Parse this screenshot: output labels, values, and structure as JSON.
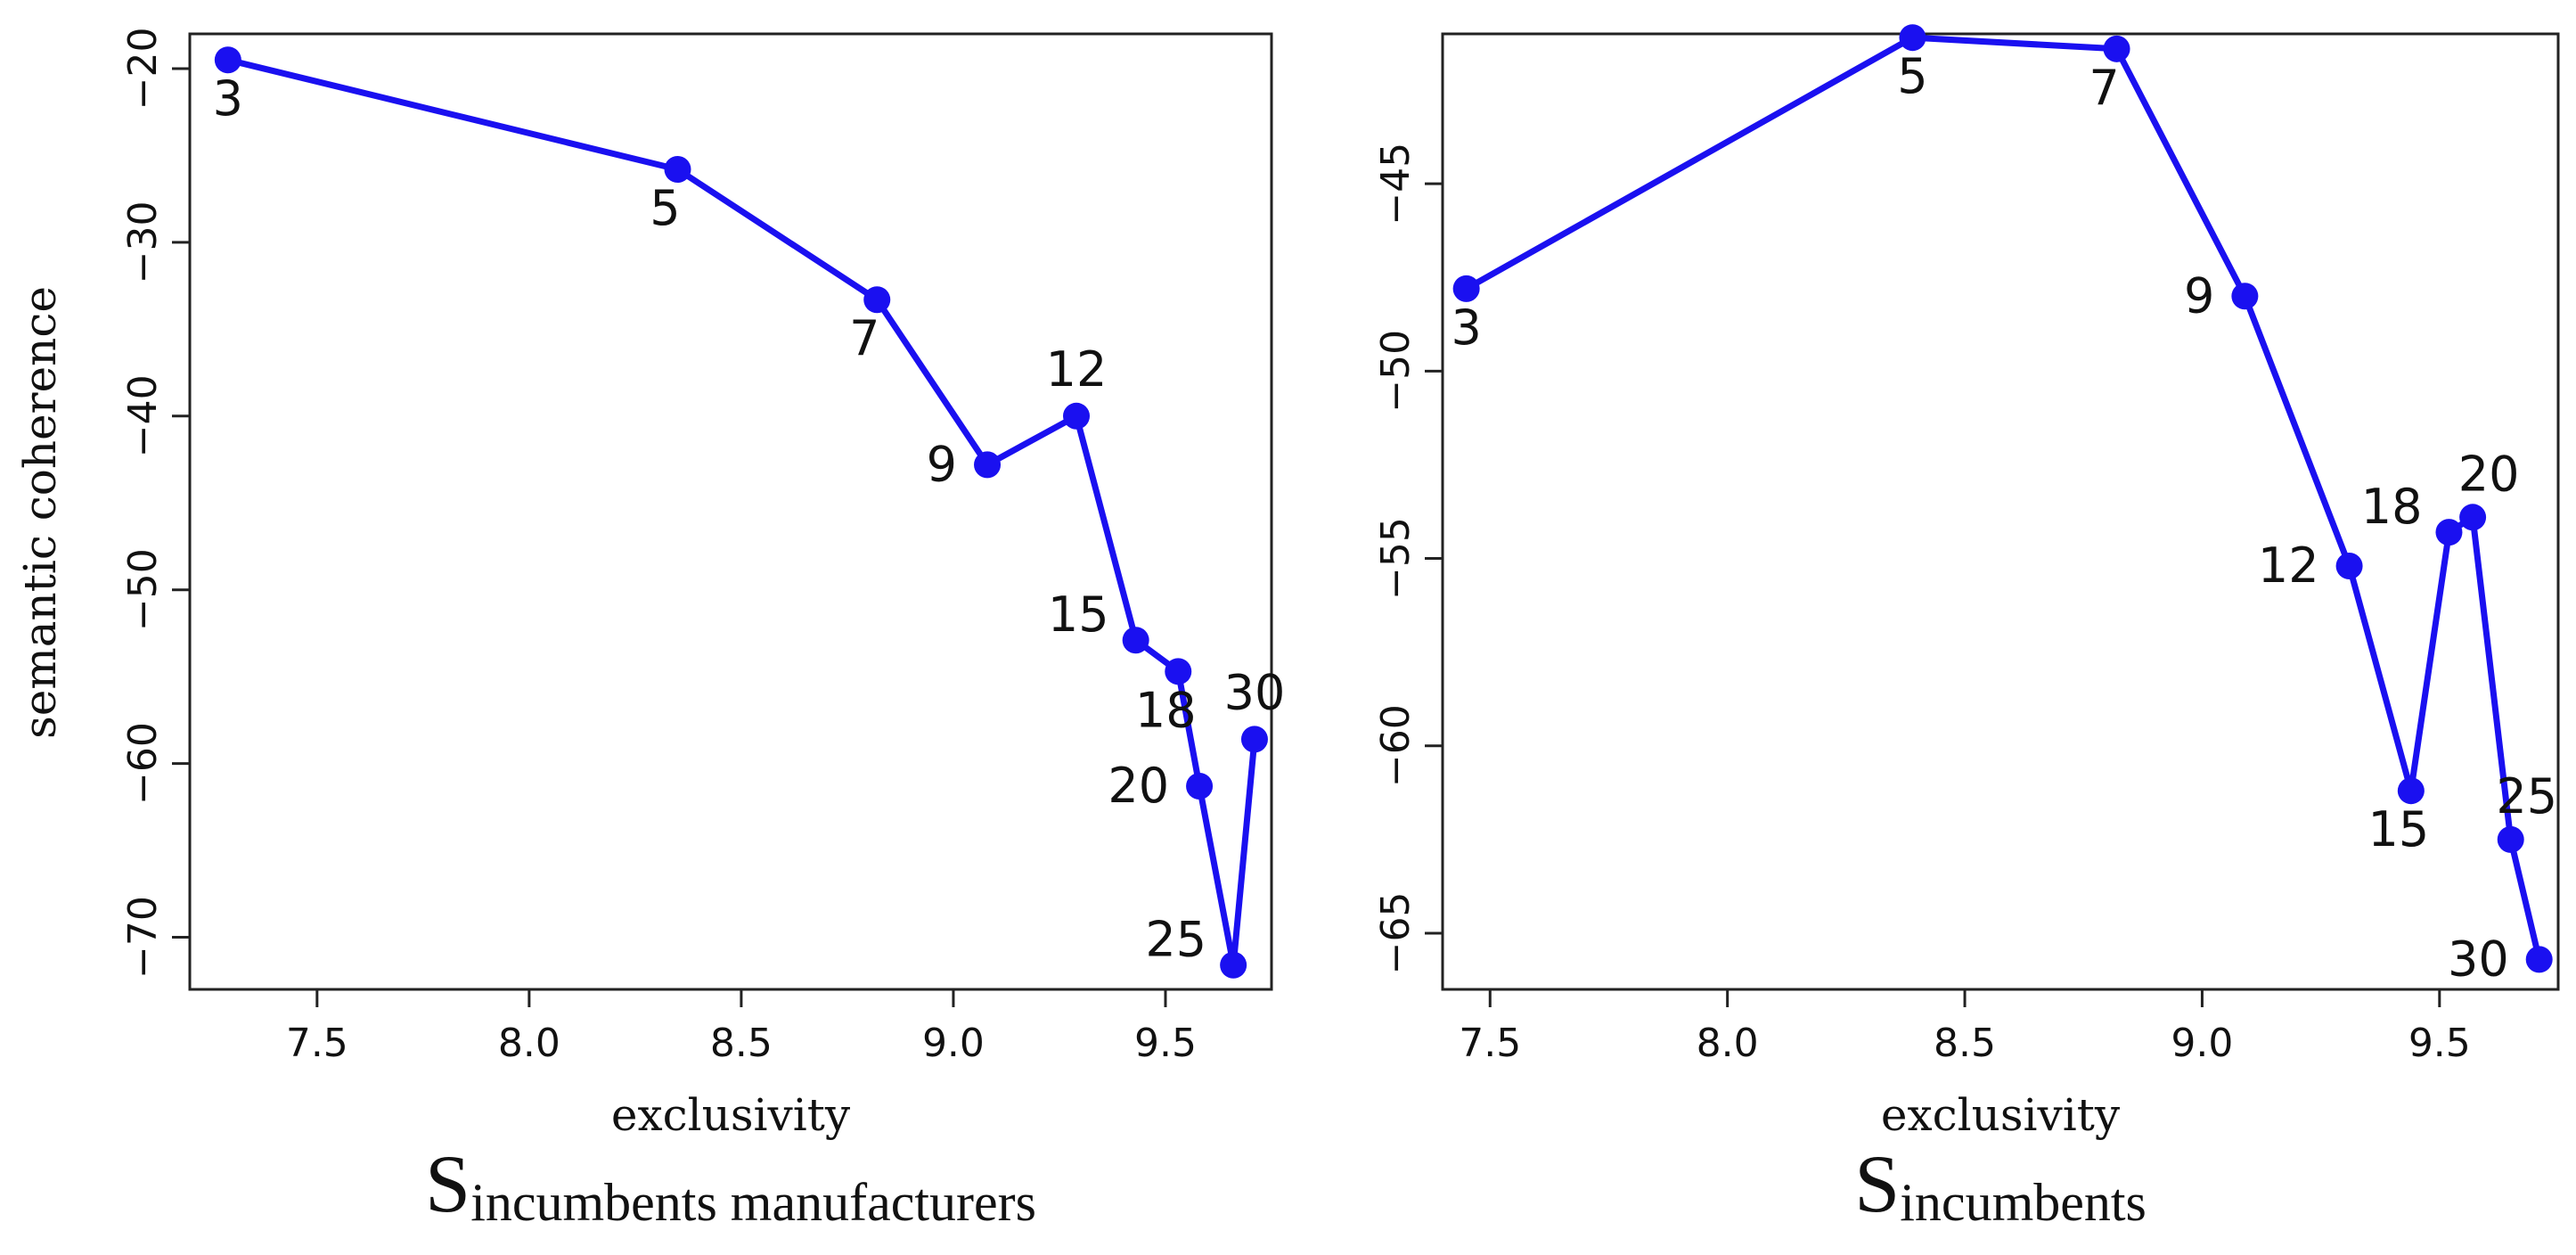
{
  "chart_data": [
    {
      "type": "line",
      "xlabel": "exclusivity",
      "ylabel": "semantic coherence",
      "title_main": "S",
      "title_sub": "incumbents manufacturers",
      "xticks": [
        7.5,
        8.0,
        8.5,
        9.0,
        9.5
      ],
      "xtick_labels": [
        "7.5",
        "8.0",
        "8.5",
        "9.0",
        "9.5"
      ],
      "yticks": [
        -20,
        -30,
        -40,
        -50,
        -60,
        -70
      ],
      "ytick_labels": [
        "−20",
        "−30",
        "−40",
        "−50",
        "−60",
        "−70"
      ],
      "xlim": [
        7.2,
        9.75
      ],
      "ylim": [
        -73,
        -18
      ],
      "color": "#1a10f0",
      "grid": false,
      "points": [
        {
          "label": "3",
          "x": 7.29,
          "y": -19.5,
          "lpos": "below"
        },
        {
          "label": "5",
          "x": 8.35,
          "y": -25.8,
          "lpos": "below-left"
        },
        {
          "label": "7",
          "x": 8.82,
          "y": -33.3,
          "lpos": "below-left"
        },
        {
          "label": "9",
          "x": 9.08,
          "y": -42.8,
          "lpos": "left"
        },
        {
          "label": "12",
          "x": 9.29,
          "y": -40.0,
          "lpos": "above"
        },
        {
          "label": "15",
          "x": 9.43,
          "y": -52.9,
          "lpos": "left-up"
        },
        {
          "label": "18",
          "x": 9.53,
          "y": -54.7,
          "lpos": "below-left"
        },
        {
          "label": "20",
          "x": 9.58,
          "y": -61.3,
          "lpos": "left"
        },
        {
          "label": "25",
          "x": 9.66,
          "y": -71.6,
          "lpos": "left-up"
        },
        {
          "label": "30",
          "x": 9.71,
          "y": -58.6,
          "lpos": "above"
        }
      ]
    },
    {
      "type": "line",
      "xlabel": "exclusivity",
      "ylabel": "",
      "title_main": "S",
      "title_sub": "incumbents",
      "xticks": [
        7.5,
        8.0,
        8.5,
        9.0,
        9.5
      ],
      "xtick_labels": [
        "7.5",
        "8.0",
        "8.5",
        "9.0",
        "9.5"
      ],
      "yticks": [
        -45,
        -50,
        -55,
        -60,
        -65
      ],
      "ytick_labels": [
        "−45",
        "−50",
        "−55",
        "−60",
        "−65"
      ],
      "xlim": [
        7.4,
        9.75
      ],
      "ylim": [
        -66.5,
        -41
      ],
      "color": "#1a10f0",
      "grid": false,
      "points": [
        {
          "label": "3",
          "x": 7.45,
          "y": -47.8,
          "lpos": "below"
        },
        {
          "label": "5",
          "x": 8.39,
          "y": -41.1,
          "lpos": "below"
        },
        {
          "label": "7",
          "x": 8.82,
          "y": -41.4,
          "lpos": "below-left"
        },
        {
          "label": "9",
          "x": 9.09,
          "y": -48.0,
          "lpos": "left"
        },
        {
          "label": "12",
          "x": 9.31,
          "y": -55.2,
          "lpos": "left"
        },
        {
          "label": "15",
          "x": 9.44,
          "y": -61.2,
          "lpos": "below-left"
        },
        {
          "label": "18",
          "x": 9.52,
          "y": -54.3,
          "lpos": "left-up"
        },
        {
          "label": "20",
          "x": 9.57,
          "y": -53.9,
          "lpos": "above-right"
        },
        {
          "label": "25",
          "x": 9.65,
          "y": -62.5,
          "lpos": "above-right"
        },
        {
          "label": "30",
          "x": 9.71,
          "y": -65.7,
          "lpos": "left"
        }
      ]
    }
  ]
}
